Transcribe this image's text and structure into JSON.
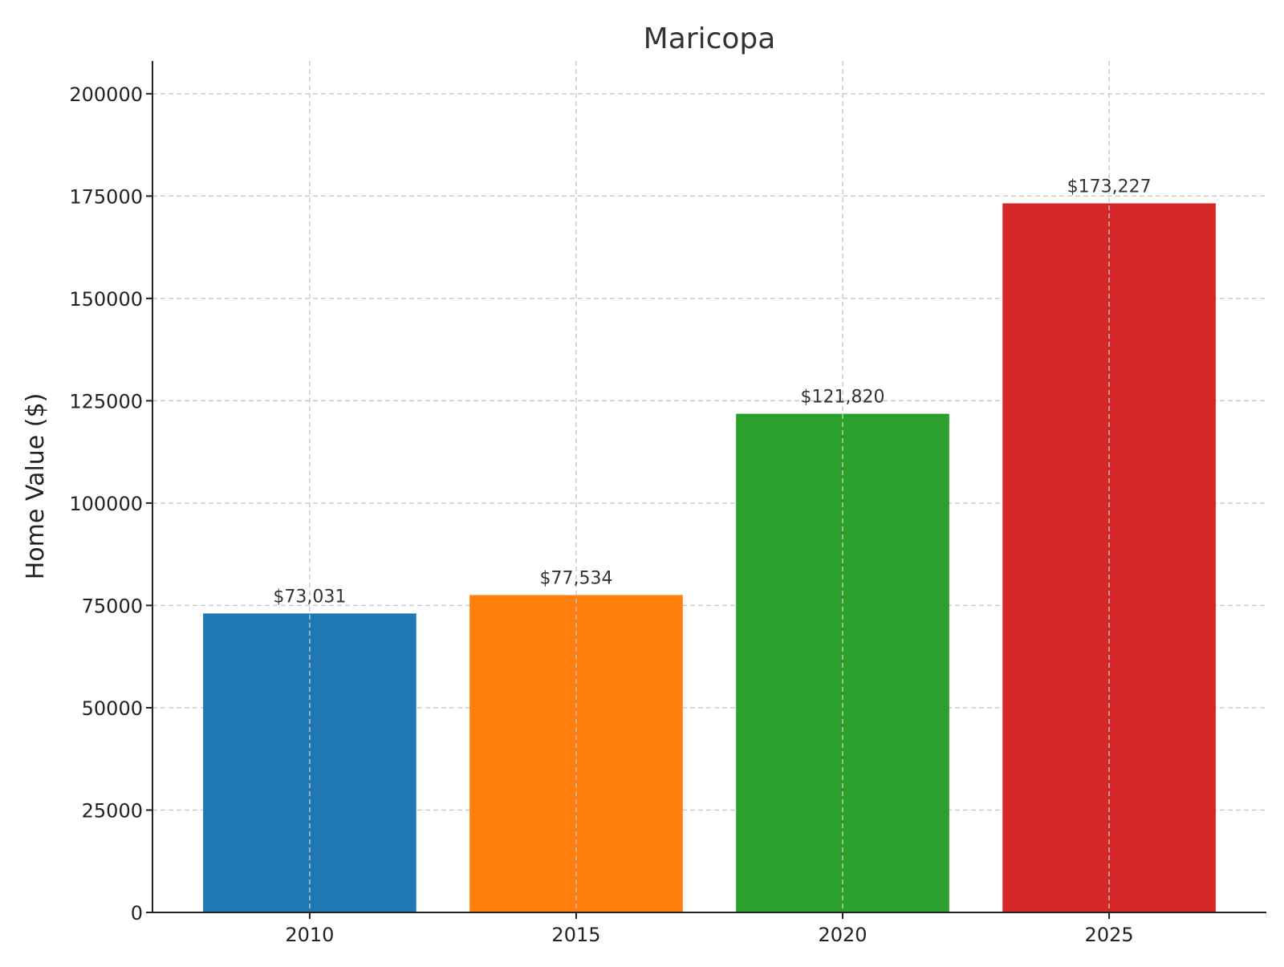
{
  "chart_data": {
    "type": "bar",
    "title": "Maricopa",
    "xlabel": "",
    "ylabel": "Home Value ($)",
    "categories": [
      "2010",
      "2015",
      "2020",
      "2025"
    ],
    "values": [
      73031,
      77534,
      121820,
      173227
    ],
    "data_labels": [
      "$73,031",
      "$77,534",
      "$121,820",
      "$173,227"
    ],
    "colors": [
      "#1f77b4",
      "#ff7f0e",
      "#2ca02c",
      "#d62728"
    ],
    "ylim": [
      0,
      208000
    ],
    "yticks": [
      0,
      25000,
      50000,
      75000,
      100000,
      125000,
      150000,
      175000,
      200000
    ],
    "ytick_labels": [
      "0",
      "25000",
      "50000",
      "75000",
      "100000",
      "125000",
      "150000",
      "175000",
      "200000"
    ],
    "grid": true
  }
}
